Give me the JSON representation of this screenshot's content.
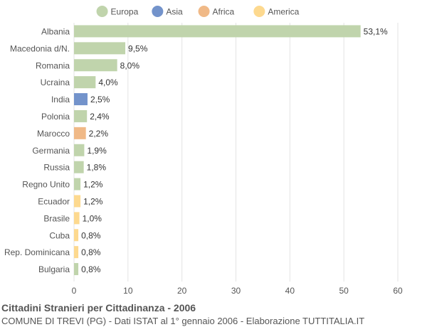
{
  "chart_data": {
    "type": "bar",
    "orientation": "horizontal",
    "title": "Cittadini Stranieri per Cittadinanza - 2006",
    "subtitle": "COMUNE DI TREVI (PG) - Dati ISTAT al 1° gennaio 2006 - Elaborazione TUTTITALIA.IT",
    "xlim": [
      0,
      60
    ],
    "xticks": [
      0,
      10,
      20,
      30,
      40,
      50,
      60
    ],
    "grid": true,
    "legend_position": "top",
    "legend": [
      {
        "name": "Europa",
        "color": "#c0d4ac"
      },
      {
        "name": "Asia",
        "color": "#7393cb"
      },
      {
        "name": "Africa",
        "color": "#f0b987"
      },
      {
        "name": "America",
        "color": "#fdd98f"
      }
    ],
    "bars": [
      {
        "label": "Albania",
        "value": 53.1,
        "value_label": "53,1%",
        "group": "Europa"
      },
      {
        "label": "Macedonia d/N.",
        "value": 9.5,
        "value_label": "9,5%",
        "group": "Europa"
      },
      {
        "label": "Romania",
        "value": 8.0,
        "value_label": "8,0%",
        "group": "Europa"
      },
      {
        "label": "Ucraina",
        "value": 4.0,
        "value_label": "4,0%",
        "group": "Europa"
      },
      {
        "label": "India",
        "value": 2.5,
        "value_label": "2,5%",
        "group": "Asia"
      },
      {
        "label": "Polonia",
        "value": 2.4,
        "value_label": "2,4%",
        "group": "Europa"
      },
      {
        "label": "Marocco",
        "value": 2.2,
        "value_label": "2,2%",
        "group": "Africa"
      },
      {
        "label": "Germania",
        "value": 1.9,
        "value_label": "1,9%",
        "group": "Europa"
      },
      {
        "label": "Russia",
        "value": 1.8,
        "value_label": "1,8%",
        "group": "Europa"
      },
      {
        "label": "Regno Unito",
        "value": 1.2,
        "value_label": "1,2%",
        "group": "Europa"
      },
      {
        "label": "Ecuador",
        "value": 1.2,
        "value_label": "1,2%",
        "group": "America"
      },
      {
        "label": "Brasile",
        "value": 1.0,
        "value_label": "1,0%",
        "group": "America"
      },
      {
        "label": "Cuba",
        "value": 0.8,
        "value_label": "0,8%",
        "group": "America"
      },
      {
        "label": "Rep. Dominicana",
        "value": 0.8,
        "value_label": "0,8%",
        "group": "America"
      },
      {
        "label": "Bulgaria",
        "value": 0.8,
        "value_label": "0,8%",
        "group": "Europa"
      }
    ]
  }
}
